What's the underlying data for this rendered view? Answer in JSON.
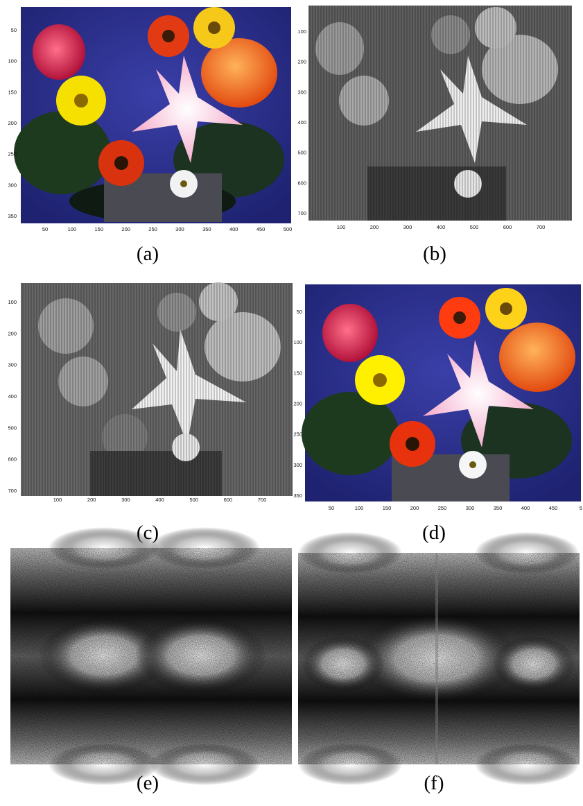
{
  "figure": {
    "panels": [
      {
        "id": "a",
        "caption": "(a)",
        "kind": "color",
        "xticks": [
          "50",
          "100",
          "150",
          "200",
          "250",
          "300",
          "350",
          "400",
          "450",
          "500"
        ],
        "yticks": [
          "50",
          "100",
          "150",
          "200",
          "250",
          "300",
          "350"
        ]
      },
      {
        "id": "b",
        "caption": "(b)",
        "kind": "gray",
        "xticks": [
          "100",
          "200",
          "300",
          "400",
          "500",
          "600",
          "700"
        ],
        "yticks": [
          "100",
          "200",
          "300",
          "400",
          "500",
          "600",
          "700"
        ]
      },
      {
        "id": "c",
        "caption": "(c)",
        "kind": "gray",
        "xticks": [
          "100",
          "200",
          "300",
          "400",
          "500",
          "600",
          "700"
        ],
        "yticks": [
          "100",
          "200",
          "300",
          "400",
          "500",
          "600",
          "700"
        ]
      },
      {
        "id": "d",
        "caption": "(d)",
        "kind": "color",
        "xticks": [
          "50",
          "100",
          "150",
          "200",
          "250",
          "300",
          "350",
          "400",
          "450",
          "5"
        ],
        "yticks": [
          "50",
          "100",
          "150",
          "200",
          "250",
          "300",
          "350"
        ]
      },
      {
        "id": "e",
        "caption": "(e)",
        "kind": "spectrum",
        "xticks": [],
        "yticks": []
      },
      {
        "id": "f",
        "caption": "(f)",
        "kind": "spectrum",
        "xticks": [],
        "yticks": []
      }
    ]
  }
}
